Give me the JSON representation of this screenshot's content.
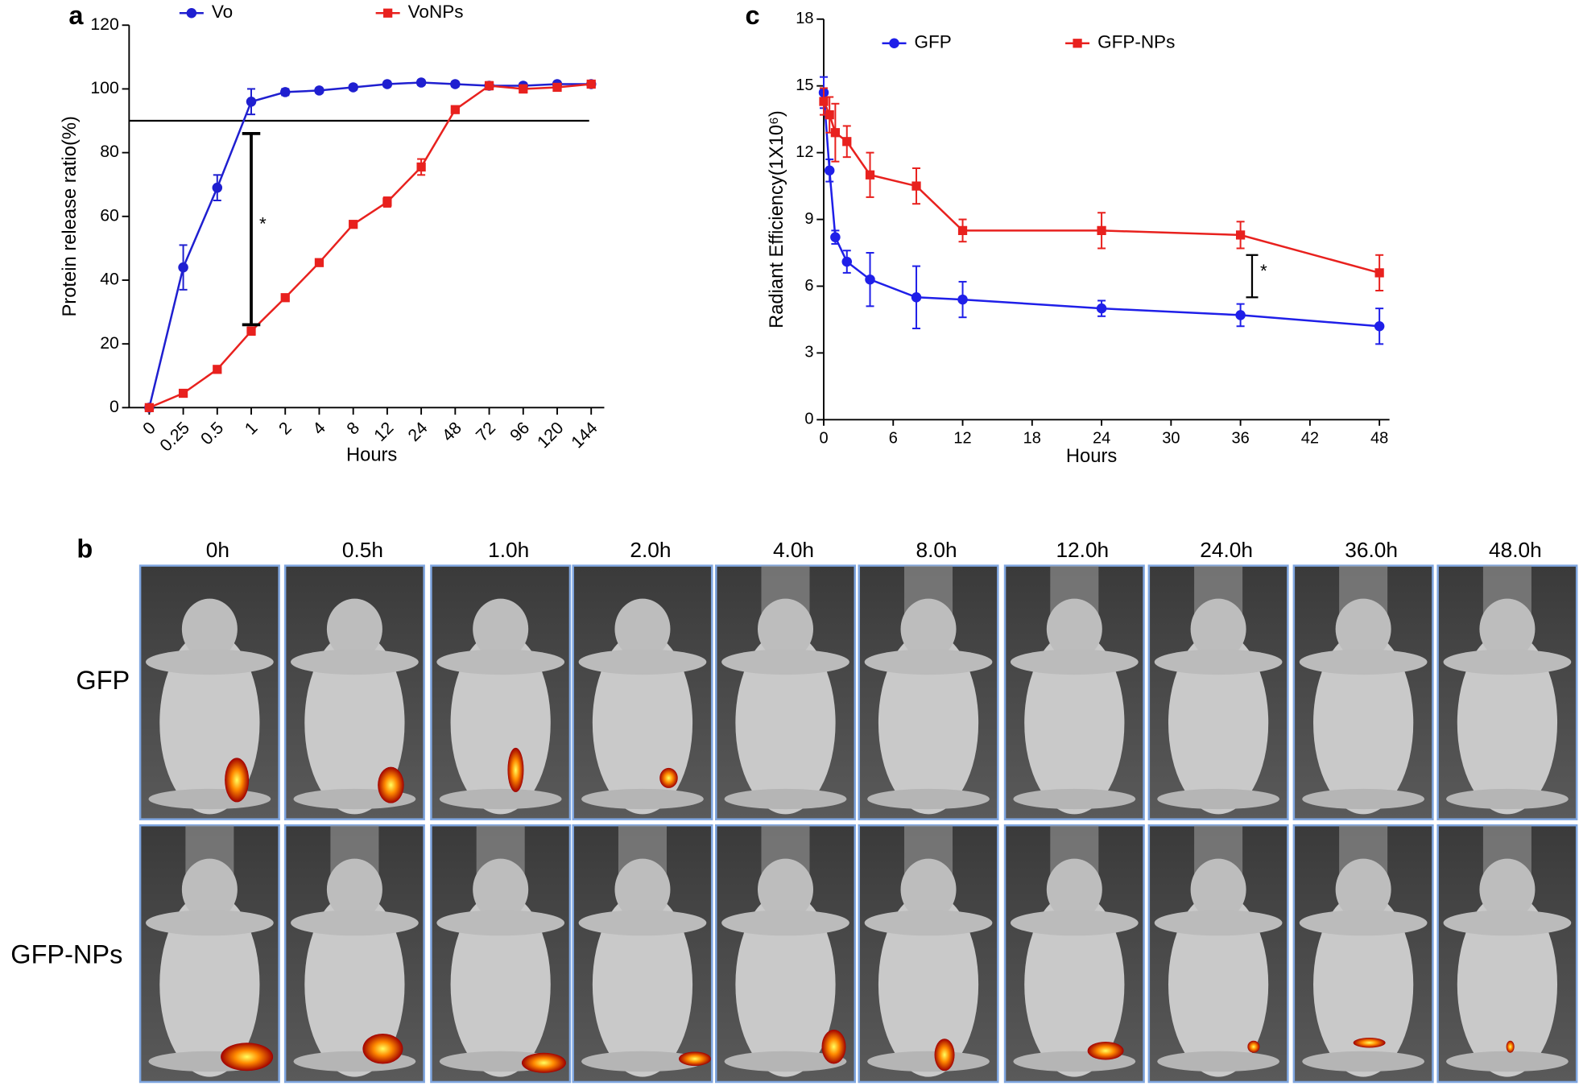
{
  "chart_data": [
    {
      "type": "line",
      "panel_label": "a",
      "x_label": "Hours",
      "y_label": "Protein release ratio(%)",
      "categories": [
        "0",
        "0.25",
        "0.5",
        "1",
        "2",
        "4",
        "8",
        "12",
        "24",
        "48",
        "72",
        "96",
        "120",
        "144"
      ],
      "ylim": [
        0,
        120
      ],
      "yticks": [
        0,
        20,
        40,
        60,
        80,
        100,
        120
      ],
      "reference_line": 90,
      "significance": {
        "text": "*",
        "at": "1",
        "range": [
          26,
          86
        ]
      },
      "series": [
        {
          "name": "Vo",
          "color": "#1f1fd0",
          "marker": "circle",
          "values": [
            0,
            44,
            69,
            96,
            99,
            99.5,
            100.5,
            101.5,
            102,
            101.5,
            101,
            101,
            101.5,
            101.5
          ],
          "errors": [
            0.5,
            7,
            4,
            4,
            1,
            0.8,
            0.8,
            0.8,
            0.8,
            0.8,
            0.8,
            0.8,
            0.8,
            0.8
          ]
        },
        {
          "name": "VoNPs",
          "color": "#e8211e",
          "marker": "square",
          "values": [
            0,
            4.5,
            12,
            24,
            34.5,
            45.5,
            57.5,
            64.5,
            75.5,
            93.5,
            101,
            100,
            100.5,
            101.5
          ],
          "errors": [
            0.5,
            0.8,
            0.8,
            1.2,
            1,
            1,
            1,
            1.5,
            2.5,
            1,
            1.2,
            1.2,
            1,
            1
          ]
        }
      ]
    },
    {
      "type": "line",
      "panel_label": "c",
      "x_label": "Hours",
      "y_label": "Radiant Efficiency(1X10⁶)",
      "xlim": [
        0,
        48
      ],
      "xticks": [
        0,
        6,
        12,
        18,
        24,
        30,
        36,
        42,
        48
      ],
      "ylim": [
        0,
        18
      ],
      "yticks": [
        0,
        3,
        6,
        9,
        12,
        15,
        18
      ],
      "significance": {
        "text": "*",
        "at": 37,
        "range": [
          5.5,
          7.4
        ]
      },
      "series": [
        {
          "name": "GFP",
          "color": "#1f1fe8",
          "marker": "circle",
          "x": [
            0,
            0.5,
            1,
            2,
            4,
            8,
            12,
            24,
            36,
            48
          ],
          "values": [
            14.7,
            11.2,
            8.2,
            7.1,
            6.3,
            5.5,
            5.4,
            5.0,
            4.7,
            4.2
          ],
          "errors": [
            0.7,
            0.5,
            0.3,
            0.5,
            1.2,
            1.4,
            0.8,
            0.35,
            0.5,
            0.8
          ]
        },
        {
          "name": "GFP-NPs",
          "color": "#e8211e",
          "marker": "square",
          "x": [
            0,
            0.5,
            1,
            2,
            4,
            8,
            12,
            24,
            36,
            48
          ],
          "values": [
            14.3,
            13.7,
            12.9,
            12.5,
            11.0,
            10.5,
            8.5,
            8.5,
            8.3,
            6.6
          ],
          "errors": [
            0.6,
            0.8,
            1.3,
            0.7,
            1.0,
            0.8,
            0.5,
            0.8,
            0.6,
            0.8
          ]
        }
      ]
    }
  ],
  "panel_b": {
    "panel_label": "b",
    "times": [
      "0h",
      "0.5h",
      "1.0h",
      "2.0h",
      "4.0h",
      "8.0h",
      "12.0h",
      "24.0h",
      "36.0h",
      "48.0h"
    ],
    "rows": [
      "GFP",
      "GFP-NPs"
    ]
  }
}
